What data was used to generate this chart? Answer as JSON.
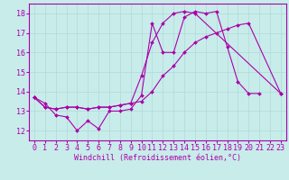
{
  "background_color": "#c8ecea",
  "grid_color": "#b0d8d8",
  "line_color": "#aa00aa",
  "marker": "D",
  "markersize": 2.0,
  "linewidth": 0.8,
  "xlabel": "Windchill (Refroidissement éolien,°C)",
  "xlabel_fontsize": 6.0,
  "tick_fontsize": 6.0,
  "xlim": [
    -0.5,
    23.5
  ],
  "ylim": [
    11.5,
    18.5
  ],
  "yticks": [
    12,
    13,
    14,
    15,
    16,
    17,
    18
  ],
  "xticks": [
    0,
    1,
    2,
    3,
    4,
    5,
    6,
    7,
    8,
    9,
    10,
    11,
    12,
    13,
    14,
    15,
    16,
    17,
    18,
    19,
    20,
    21,
    22,
    23
  ],
  "series": [
    [
      13.7,
      13.4,
      12.8,
      12.7,
      12.0,
      12.5,
      12.1,
      13.0,
      13.0,
      13.1,
      13.8,
      17.5,
      16.0,
      16.0,
      17.8,
      18.1,
      18.0,
      18.1,
      16.3,
      14.5,
      13.9,
      13.9
    ],
    [
      13.7,
      13.2,
      13.1,
      13.2,
      13.2,
      13.1,
      13.2,
      13.2,
      13.3,
      13.4,
      13.5,
      14.0,
      14.8,
      15.3,
      16.0,
      16.5,
      16.8,
      17.0,
      17.2,
      17.4,
      17.5,
      13.9
    ],
    [
      13.7,
      13.2,
      13.1,
      13.2,
      13.2,
      13.1,
      13.2,
      13.2,
      13.3,
      13.4,
      14.8,
      16.5,
      17.5,
      18.0,
      18.1,
      18.0,
      13.9
    ]
  ],
  "series_x": [
    [
      0,
      1,
      2,
      3,
      4,
      5,
      6,
      7,
      8,
      9,
      10,
      11,
      12,
      13,
      14,
      15,
      16,
      17,
      18,
      19,
      20,
      21
    ],
    [
      0,
      1,
      2,
      3,
      4,
      5,
      6,
      7,
      8,
      9,
      10,
      11,
      12,
      13,
      14,
      15,
      16,
      17,
      18,
      19,
      20,
      23
    ],
    [
      0,
      1,
      2,
      3,
      4,
      5,
      6,
      7,
      8,
      9,
      10,
      11,
      12,
      13,
      14,
      15,
      23
    ]
  ]
}
